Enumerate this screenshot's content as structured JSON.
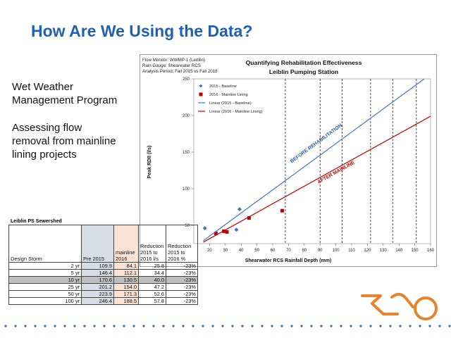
{
  "slide": {
    "title": "How Are We Using the Data?",
    "bullets": [
      "Wet Weather\nManagement Program",
      "Assessing flow\nremoval from mainline\nlining projects"
    ]
  },
  "chart_info": {
    "monitor": "Flow Monitor: WWMP-1 (Leiblin)",
    "gauge": "Rain Gauge: Shearwater RCS",
    "period": "Analysis Period: Fall 2015 vs Fall 2016",
    "title_line1": "Quantifying Rehabilitation Effectiveness",
    "title_line2": "Leiblin Pumping Station",
    "annot_before": "BEFORE REHABILITATION",
    "annot_after": "AFTER MAINLINE"
  },
  "chart_data": {
    "type": "scatter",
    "title": "Quantifying Rehabilitation Effectiveness",
    "subtitle": "Leiblin Pumping Station",
    "xlabel": "Shearwater RCS Rainfall Depth (mm)",
    "ylabel": "Peak RDII (l/s)",
    "xlim": [
      10,
      160
    ],
    "ylim": [
      25,
      250
    ],
    "x_ticks": [
      20,
      30,
      40,
      50,
      60,
      70,
      80,
      90,
      100,
      110,
      120,
      130,
      140,
      150,
      160
    ],
    "y_ticks": [
      50,
      100,
      150,
      200,
      250
    ],
    "series": [
      {
        "name": "2015 - Baseline",
        "kind": "points",
        "color": "#4472c4",
        "marker": "diamond",
        "points": [
          [
            17,
            46
          ],
          [
            37,
            44
          ],
          [
            39,
            72
          ]
        ]
      },
      {
        "name": "2016 - Mainline Lining",
        "kind": "points",
        "color": "#c00000",
        "marker": "square",
        "points": [
          [
            24,
            39
          ],
          [
            29,
            42
          ],
          [
            31,
            41
          ],
          [
            45,
            60
          ],
          [
            66,
            70
          ]
        ]
      },
      {
        "name": "Linear (2015 - Baseline)",
        "kind": "line",
        "color": "#4472c4",
        "points": [
          [
            16,
            29
          ],
          [
            156,
            250
          ]
        ]
      },
      {
        "name": "Linear (2016 - Mainline Lining)",
        "kind": "line",
        "color": "#c00000",
        "points": [
          [
            16,
            27
          ],
          [
            160,
            199
          ]
        ]
      }
    ],
    "vertical_dashed_x": [
      68,
      90,
      104,
      122,
      136,
      151
    ],
    "legend": "top-left"
  },
  "table": {
    "caption": "Leiblin PS Sewershed",
    "headers": [
      "Design Storm",
      "Pre 2015",
      "mainline 2016",
      "Reduction 2015 to 2016 l/s",
      "Reduction 2015 to 2016 %"
    ],
    "rows": [
      [
        "2 yr",
        "109.9",
        "84.1",
        "25.8",
        "-23%"
      ],
      [
        "5 yr",
        "146.4",
        "112.1",
        "34.4",
        "-23%"
      ],
      [
        "10 yr",
        "170.6",
        "130.5",
        "40.0",
        "-23%"
      ],
      [
        "25 yr",
        "201.2",
        "154.0",
        "47.2",
        "-23%"
      ],
      [
        "50 yr",
        "223.9",
        "171.3",
        "52.6",
        "-23%"
      ],
      [
        "100 yr",
        "246.4",
        "188.5",
        "57.8",
        "-23%"
      ]
    ],
    "highlighted_row": 2
  },
  "colors": {
    "title": "#1f5fb4",
    "logo": "#e8832a",
    "dots": "#2f6db5"
  },
  "logo_icon": "orange-swoosh-logo"
}
